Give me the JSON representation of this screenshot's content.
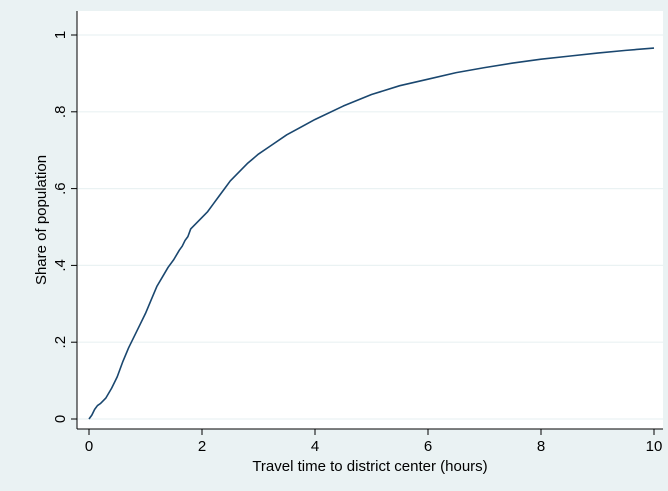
{
  "colors": {
    "outer_background": "#eaf2f3",
    "plot_background": "#ffffff",
    "gridline": "#eaf2f3",
    "line": "#1a476f",
    "axis": "#000000"
  },
  "chart_data": {
    "type": "line",
    "title": "",
    "xlabel": "Travel time to district center (hours)",
    "ylabel": "Share of population",
    "xlim": [
      0,
      10
    ],
    "ylim": [
      0,
      1
    ],
    "x_ticks": [
      0,
      2,
      4,
      6,
      8,
      10
    ],
    "x_tick_labels": [
      "0",
      "2",
      "4",
      "6",
      "8",
      "10"
    ],
    "y_ticks": [
      0,
      0.2,
      0.4,
      0.6,
      0.8,
      1
    ],
    "y_tick_labels": [
      "0",
      ".2",
      ".4",
      ".6",
      ".8",
      "1"
    ],
    "grid": true,
    "legend": "none",
    "series": [
      {
        "x": [
          0,
          0.05,
          0.1,
          0.15,
          0.2,
          0.3,
          0.4,
          0.5,
          0.6,
          0.7,
          0.8,
          0.9,
          1.0,
          1.1,
          1.2,
          1.3,
          1.4,
          1.5,
          1.6,
          1.65,
          1.7,
          1.75,
          1.8,
          1.9,
          2.0,
          2.1,
          2.2,
          2.3,
          2.4,
          2.5,
          2.6,
          2.8,
          3.0,
          3.2,
          3.5,
          4.0,
          4.5,
          5.0,
          5.5,
          6.0,
          6.5,
          7.0,
          7.5,
          8.0,
          8.5,
          9.0,
          9.5,
          10.0
        ],
        "y": [
          0.0,
          0.01,
          0.025,
          0.035,
          0.04,
          0.055,
          0.08,
          0.11,
          0.15,
          0.185,
          0.215,
          0.245,
          0.275,
          0.31,
          0.345,
          0.37,
          0.395,
          0.415,
          0.44,
          0.45,
          0.465,
          0.475,
          0.495,
          0.51,
          0.525,
          0.54,
          0.56,
          0.58,
          0.6,
          0.62,
          0.635,
          0.665,
          0.69,
          0.71,
          0.74,
          0.78,
          0.815,
          0.845,
          0.868,
          0.885,
          0.902,
          0.915,
          0.927,
          0.937,
          0.945,
          0.953,
          0.96,
          0.966
        ]
      }
    ]
  }
}
